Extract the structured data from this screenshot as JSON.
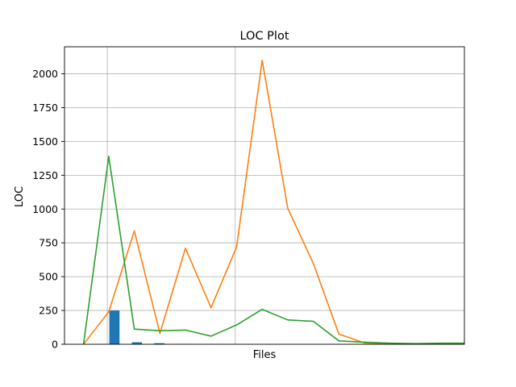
{
  "chart_data": {
    "type": "line",
    "title": "LOC Plot",
    "xlabel": "Files",
    "ylabel": "LOC",
    "ylim": [
      0,
      2200
    ],
    "xlim": [
      -0.05,
      1.0
    ],
    "yticks": [
      0,
      250,
      500,
      750,
      1000,
      1250,
      1500,
      1750,
      2000
    ],
    "ytick_labels": [
      "0",
      "250",
      "500",
      "750",
      "1000",
      "1250",
      "1500",
      "1750",
      "2000"
    ],
    "grid": {
      "horizontal": true,
      "vertical_lines_at_x": [
        0.0625,
        0.3983
      ]
    },
    "series": [
      {
        "kind": "line",
        "color": "#ff7f0e",
        "x": [
          0.0,
          0.0662,
          0.1333,
          0.2005,
          0.2676,
          0.3348,
          0.4019,
          0.4691,
          0.5362,
          0.6034,
          0.6705,
          0.7377,
          0.8048,
          0.872,
          0.9391,
          1.0
        ],
        "y": [
          0,
          240,
          838,
          80,
          710,
          270,
          720,
          2100,
          1005,
          597,
          75,
          10,
          5,
          3,
          3,
          3
        ]
      },
      {
        "kind": "line",
        "color": "#2ca02c",
        "x": [
          0.0,
          0.0662,
          0.1333,
          0.2005,
          0.2676,
          0.3348,
          0.4019,
          0.4691,
          0.5362,
          0.6034,
          0.6705,
          0.7377,
          0.8048,
          0.872,
          0.9391,
          1.0
        ],
        "y": [
          0,
          1390,
          112,
          100,
          105,
          60,
          143,
          258,
          180,
          170,
          25,
          15,
          8,
          5,
          8,
          8
        ]
      },
      {
        "kind": "bar",
        "color": "#1f77b4",
        "bar_width": 0.0268,
        "x": [
          0.0811,
          0.1402,
          0.1992,
          0.2597
        ],
        "y": [
          250,
          15,
          8,
          3
        ]
      }
    ]
  }
}
